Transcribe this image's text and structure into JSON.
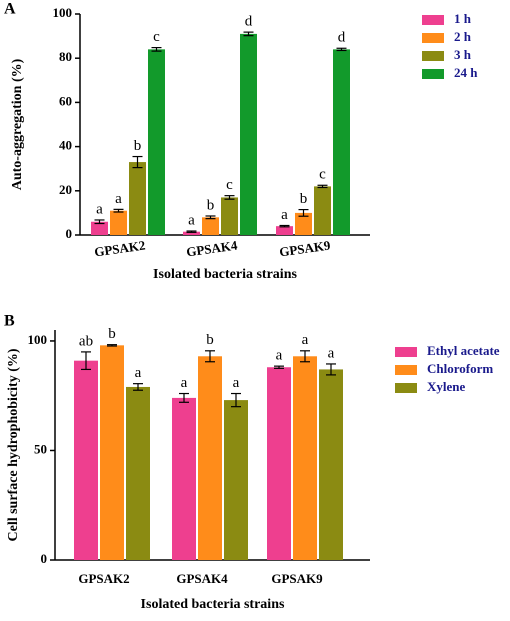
{
  "chart_data": [
    {
      "type": "bar",
      "panel": "A",
      "x_label": "Isolated bacteria strains",
      "y_label": "Auto-aggregation (%)",
      "categories": [
        "GPSAK2",
        "GPSAK4",
        "GPSAK9"
      ],
      "ylim": [
        0,
        100
      ],
      "yticks": [
        0,
        20,
        40,
        60,
        80,
        100
      ],
      "series": [
        {
          "name": "1 h",
          "color": "#ee3f8f",
          "values": [
            6,
            1.5,
            4
          ],
          "errors": [
            0.8,
            0.3,
            0.3
          ],
          "annotations": [
            "a",
            "a",
            "a"
          ]
        },
        {
          "name": "2 h",
          "color": "#ff8c1a",
          "values": [
            11,
            8,
            10
          ],
          "errors": [
            0.6,
            0.6,
            1.5
          ],
          "annotations": [
            "a",
            "b",
            "b"
          ]
        },
        {
          "name": "3 h",
          "color": "#8b8b12",
          "values": [
            33,
            17,
            22
          ],
          "errors": [
            2.5,
            0.8,
            0.5
          ],
          "annotations": [
            "b",
            "c",
            "c"
          ]
        },
        {
          "name": "24 h",
          "color": "#129a2b",
          "values": [
            84,
            91,
            84
          ],
          "errors": [
            0.8,
            0.8,
            0.5
          ],
          "annotations": [
            "c",
            "d",
            "d"
          ]
        }
      ]
    },
    {
      "type": "bar",
      "panel": "B",
      "x_label": "Isolated bacteria strains",
      "y_label": "Cell surface hydrophobicity (%)",
      "categories": [
        "GPSAK2",
        "GPSAK4",
        "GPSAK9"
      ],
      "ylim": [
        0,
        105
      ],
      "yticks": [
        0,
        50,
        100
      ],
      "series": [
        {
          "name": "Ethyl acetate",
          "color": "#ee3f8f",
          "values": [
            91,
            74,
            88
          ],
          "errors": [
            4,
            2,
            0.5
          ],
          "annotations": [
            "ab",
            "a",
            "a"
          ]
        },
        {
          "name": "Chloroform",
          "color": "#ff8c1a",
          "values": [
            98,
            93,
            93
          ],
          "errors": [
            0.3,
            2.5,
            2.5
          ],
          "annotations": [
            "b",
            "b",
            "a"
          ]
        },
        {
          "name": "Xylene",
          "color": "#8b8b12",
          "values": [
            79,
            73,
            87
          ],
          "errors": [
            1.5,
            3,
            2.5
          ],
          "annotations": [
            "a",
            "a",
            "a"
          ]
        }
      ]
    }
  ]
}
